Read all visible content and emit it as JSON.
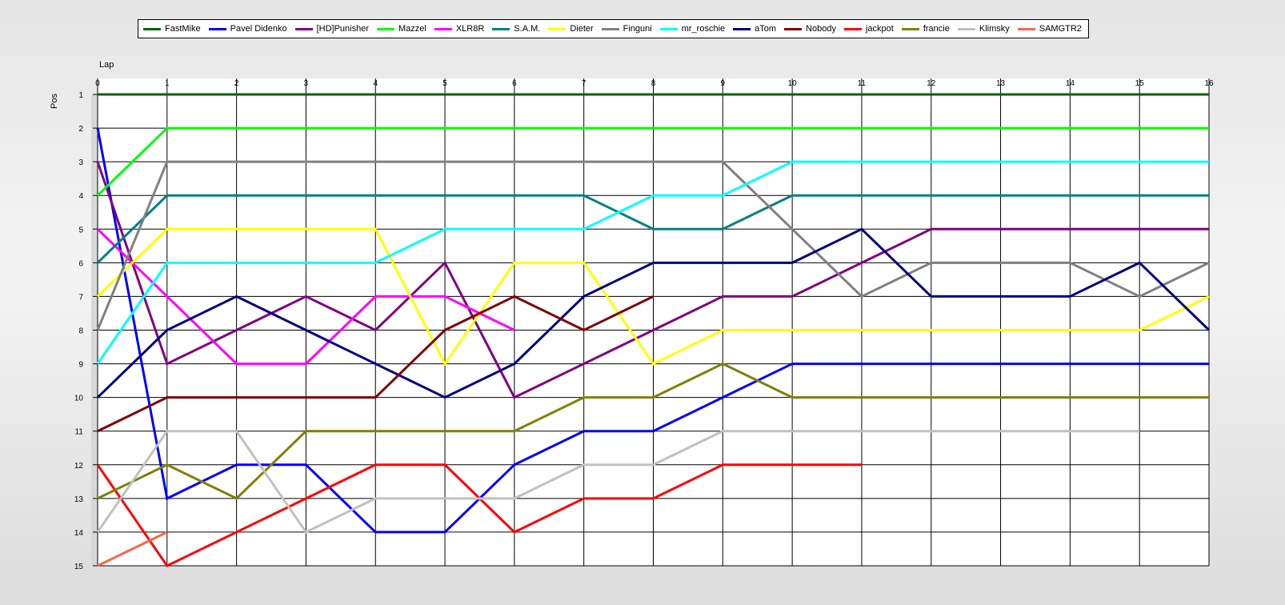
{
  "chart_data": {
    "type": "line",
    "xlabel": "Lap",
    "ylabel": "Pos",
    "xlim": [
      0,
      16
    ],
    "ylim": [
      1,
      15
    ],
    "y_inverted": true,
    "grid": true,
    "legend_placement": "top",
    "x_ticks": [
      0,
      1,
      2,
      3,
      4,
      5,
      6,
      7,
      8,
      9,
      10,
      11,
      12,
      13,
      14,
      15,
      16
    ],
    "y_ticks": [
      1,
      2,
      3,
      4,
      5,
      6,
      7,
      8,
      9,
      10,
      11,
      12,
      13,
      14,
      15
    ],
    "series": [
      {
        "name": "FastMike",
        "color": "#006400",
        "values": [
          1,
          1,
          1,
          1,
          1,
          1,
          1,
          1,
          1,
          1,
          1,
          1,
          1,
          1,
          1,
          1,
          1
        ]
      },
      {
        "name": "Pavel Didenko",
        "color": "#0000ff",
        "values": [
          2,
          13,
          12,
          12,
          14,
          14,
          12,
          11,
          11,
          10,
          9,
          9,
          9,
          9,
          9,
          9,
          9
        ]
      },
      {
        "name": "[HD]Punisher",
        "color": "#800080",
        "values": [
          3,
          9,
          8,
          7,
          8,
          6,
          10,
          9,
          8,
          7,
          7,
          6,
          5,
          5,
          5,
          5,
          5
        ]
      },
      {
        "name": "Mazzel",
        "color": "#00ff00",
        "values": [
          4,
          2,
          2,
          2,
          2,
          2,
          2,
          2,
          2,
          2,
          2,
          2,
          2,
          2,
          2,
          2,
          2
        ]
      },
      {
        "name": "XLR8R",
        "color": "#ff00ff",
        "values": [
          5,
          7,
          9,
          9,
          7,
          7,
          8
        ]
      },
      {
        "name": "S.A.M.",
        "color": "#008080",
        "values": [
          6,
          4,
          4,
          4,
          4,
          4,
          4,
          4,
          5,
          5,
          4,
          4,
          4,
          4,
          4,
          4,
          4
        ]
      },
      {
        "name": "Dieter",
        "color": "#ffff00",
        "values": [
          7,
          5,
          5,
          5,
          5,
          9,
          6,
          6,
          9,
          8,
          8,
          8,
          8,
          8,
          8,
          8,
          7
        ]
      },
      {
        "name": "Finguni",
        "color": "#808080",
        "values": [
          8,
          3,
          3,
          3,
          3,
          3,
          3,
          3,
          3,
          3,
          5,
          7,
          6,
          6,
          6,
          7,
          6
        ]
      },
      {
        "name": "mr_roschie",
        "color": "#00ffff",
        "values": [
          9,
          6,
          6,
          6,
          6,
          5,
          5,
          5,
          4,
          4,
          3,
          3,
          3,
          3,
          3,
          3,
          3
        ]
      },
      {
        "name": "aTom",
        "color": "#000080",
        "values": [
          10,
          8,
          7,
          8,
          9,
          10,
          9,
          7,
          6,
          6,
          6,
          5,
          7,
          7,
          7,
          6,
          8
        ]
      },
      {
        "name": "Nobody",
        "color": "#800000",
        "values": [
          11,
          10,
          10,
          10,
          10,
          8,
          7,
          8,
          7
        ]
      },
      {
        "name": "jackpot",
        "color": "#ff0000",
        "values": [
          12,
          15,
          14,
          13,
          12,
          12,
          14,
          13,
          13,
          12,
          12,
          12
        ]
      },
      {
        "name": "francie",
        "color": "#808000",
        "values": [
          13,
          12,
          13,
          11,
          11,
          11,
          11,
          10,
          10,
          9,
          10,
          10,
          10,
          10,
          10,
          10,
          10
        ]
      },
      {
        "name": "Klimsky",
        "color": "#c0c0c0",
        "values": [
          14,
          11,
          11,
          14,
          13,
          13,
          13,
          12,
          12,
          11,
          11,
          11,
          11,
          11,
          11,
          11
        ]
      },
      {
        "name": "SAMGTR2",
        "color": "#ff6347",
        "values": [
          15,
          14
        ]
      }
    ]
  }
}
